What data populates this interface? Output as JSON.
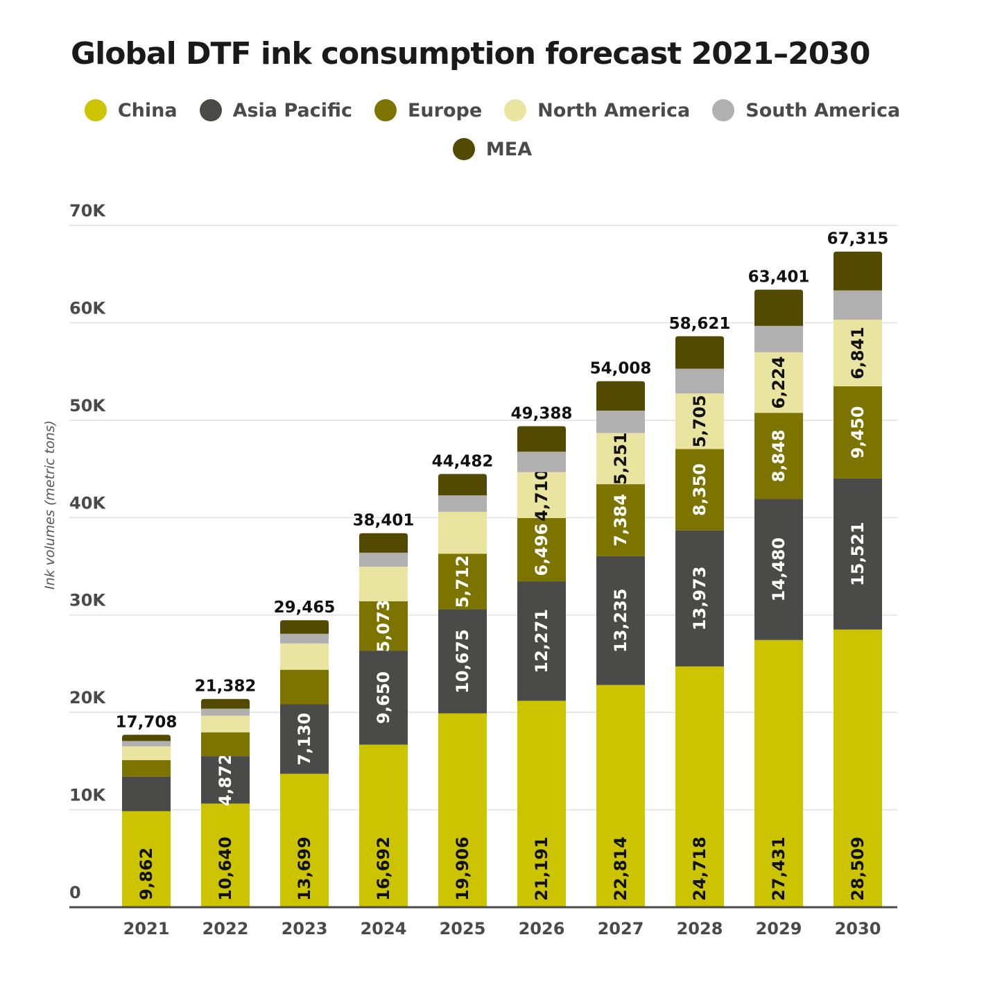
{
  "chart_data": {
    "type": "bar",
    "stacked": true,
    "title": "Global DTF ink consumption forecast 2021–2030",
    "xlabel": "",
    "ylabel": "Ink volumes (metric tons)",
    "ylim": [
      0,
      70000
    ],
    "yticks": [
      0,
      10000,
      20000,
      30000,
      40000,
      50000,
      60000,
      70000
    ],
    "ytick_labels": [
      "0",
      "10K",
      "20K",
      "30K",
      "40K",
      "50K",
      "60K",
      "70K"
    ],
    "grid": true,
    "legend_position": "top",
    "categories": [
      "2021",
      "2022",
      "2023",
      "2024",
      "2025",
      "2026",
      "2027",
      "2028",
      "2029",
      "2030"
    ],
    "series": [
      {
        "name": "China",
        "color": "#cdc400",
        "label_color": "#111111",
        "values": [
          9862,
          10640,
          13699,
          16692,
          19906,
          21191,
          22814,
          24718,
          27431,
          28509
        ],
        "labels": [
          "9,862",
          "10,640",
          "13,699",
          "16,692",
          "19,906",
          "21,191",
          "22,814",
          "24,718",
          "27,431",
          "28,509"
        ]
      },
      {
        "name": "Asia Pacific",
        "color": "#4a4a48",
        "label_color": "#ffffff",
        "values": [
          3550,
          4872,
          7130,
          9650,
          10675,
          12271,
          13235,
          13973,
          14480,
          15521
        ],
        "labels": [
          "",
          "4,872",
          "7,130",
          "9,650",
          "10,675",
          "12,271",
          "13,235",
          "13,973",
          "14,480",
          "15,521"
        ]
      },
      {
        "name": "Europe",
        "color": "#7d7400",
        "label_color": "#ffffff",
        "values": [
          1700,
          2450,
          3550,
          5073,
          5712,
          6496,
          7384,
          8350,
          8848,
          9450
        ],
        "labels": [
          "",
          "",
          "",
          "5,073",
          "5,712",
          "6,496",
          "7,384",
          "8,350",
          "8,848",
          "9,450"
        ]
      },
      {
        "name": "North America",
        "color": "#e9e5a0",
        "label_color": "#111111",
        "values": [
          1400,
          1700,
          2700,
          3550,
          4300,
          4710,
          5251,
          5705,
          6224,
          6841
        ],
        "labels": [
          "",
          "",
          "",
          "",
          "",
          "4,710",
          "5,251",
          "5,705",
          "6,224",
          "6,841"
        ]
      },
      {
        "name": "South America",
        "color": "#b0b0b0",
        "label_color": "#111111",
        "values": [
          550,
          720,
          1000,
          1436,
          1689,
          2100,
          2300,
          2550,
          2700,
          3000
        ],
        "labels": [
          "",
          "",
          "",
          "",
          "",
          "",
          "",
          "",
          "",
          ""
        ]
      },
      {
        "name": "MEA",
        "color": "#524a00",
        "label_color": "#ffffff",
        "values": [
          646,
          1000,
          1386,
          2000,
          2200,
          2620,
          3024,
          3325,
          3718,
          3994
        ],
        "labels": [
          "",
          "",
          "",
          "",
          "",
          "",
          "",
          "",
          "",
          ""
        ]
      }
    ],
    "totals": [
      17708,
      21382,
      29465,
      38401,
      44482,
      49388,
      54008,
      58621,
      63401,
      67315
    ],
    "total_labels": [
      "17,708",
      "21,382",
      "29,465",
      "38,401",
      "44,482",
      "49,388",
      "54,008",
      "58,621",
      "63,401",
      "67,315"
    ]
  }
}
